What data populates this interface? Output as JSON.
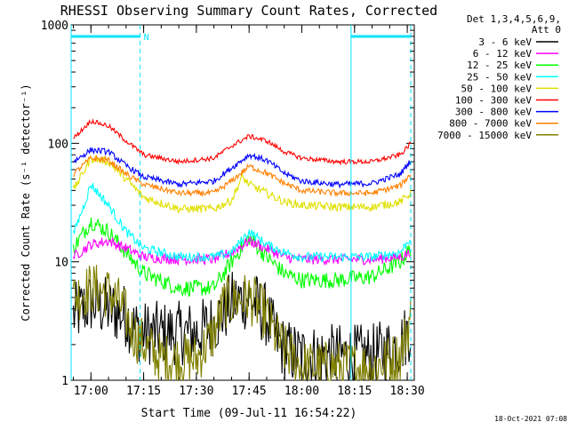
{
  "chart_data": {
    "type": "line",
    "title": "RHESSI Observing Summary Count Rates, Corrected",
    "xlabel": "Start Time (09-Jul-11 16:54:22)",
    "ylabel": "Corrected Count Rate (s⁻¹ detector⁻¹)",
    "yscale": "log",
    "ylim": [
      1,
      1000
    ],
    "xlim": [
      "16:54:22",
      "18:32:00"
    ],
    "x_ticks": [
      "17:00",
      "17:15",
      "17:30",
      "17:45",
      "18:00",
      "18:15",
      "18:30"
    ],
    "y_ticks": [
      "1",
      "10",
      "100",
      "1000"
    ],
    "legend_header": [
      "Det 1,3,4,5,6,9,",
      "Att 0"
    ],
    "legend_position": "right",
    "series": [
      {
        "name": "3 - 6 keV",
        "color": "#000000",
        "x": [
          "16:55",
          "17:00",
          "17:05",
          "17:10",
          "17:12",
          "17:15",
          "17:20",
          "17:30",
          "17:35",
          "17:40",
          "17:45",
          "17:50",
          "17:52",
          "17:55",
          "18:00",
          "18:10",
          "18:20",
          "18:28",
          "18:31"
        ],
        "y": [
          3.5,
          4.5,
          4.0,
          3.5,
          2.8,
          2.5,
          2.5,
          2.5,
          3.0,
          4.5,
          5.0,
          3.5,
          2.5,
          1.8,
          1.6,
          1.6,
          1.6,
          2.0,
          2.8
        ]
      },
      {
        "name": "6 - 12 keV",
        "color": "#ff00ff",
        "x": [
          "16:55",
          "17:00",
          "17:05",
          "17:10",
          "17:15",
          "17:25",
          "17:35",
          "17:40",
          "17:45",
          "17:50",
          "17:55",
          "18:00",
          "18:10",
          "18:20",
          "18:28",
          "18:31"
        ],
        "y": [
          11,
          14,
          15,
          13,
          11,
          10.5,
          10.5,
          12,
          15,
          13,
          11,
          10.5,
          10.5,
          10.5,
          11,
          12
        ]
      },
      {
        "name": "12 - 25 keV",
        "color": "#00ff00",
        "x": [
          "16:55",
          "17:00",
          "17:05",
          "17:10",
          "17:15",
          "17:25",
          "17:35",
          "17:40",
          "17:45",
          "17:50",
          "17:55",
          "18:00",
          "18:10",
          "18:20",
          "18:28",
          "18:31"
        ],
        "y": [
          13,
          22,
          18,
          12,
          8,
          6,
          6,
          10,
          16,
          11,
          8,
          7,
          7,
          7.5,
          10,
          13
        ]
      },
      {
        "name": "25 - 50 keV",
        "color": "#00ffff",
        "x": [
          "16:55",
          "16:58",
          "17:00",
          "17:05",
          "17:10",
          "17:15",
          "17:25",
          "17:35",
          "17:40",
          "17:45",
          "17:50",
          "17:55",
          "18:00",
          "18:10",
          "18:20",
          "18:28",
          "18:31"
        ],
        "y": [
          17,
          30,
          45,
          30,
          18,
          13,
          11,
          11,
          12,
          18,
          14,
          12,
          11,
          11,
          11,
          12,
          16
        ]
      },
      {
        "name": "50 - 100 keV",
        "color": "#e0e000",
        "x": [
          "16:55",
          "17:00",
          "17:05",
          "17:10",
          "17:15",
          "17:25",
          "17:35",
          "17:40",
          "17:43",
          "17:45",
          "17:50",
          "17:55",
          "18:00",
          "18:10",
          "18:20",
          "18:28",
          "18:31"
        ],
        "y": [
          40,
          75,
          70,
          50,
          35,
          28,
          28,
          33,
          52,
          45,
          38,
          32,
          30,
          29,
          29,
          32,
          38
        ]
      },
      {
        "name": "100 - 300 keV",
        "color": "#ff0000",
        "x": [
          "16:55",
          "17:00",
          "17:05",
          "17:10",
          "17:15",
          "17:25",
          "17:35",
          "17:40",
          "17:45",
          "17:50",
          "17:55",
          "18:00",
          "18:10",
          "18:20",
          "18:28",
          "18:31"
        ],
        "y": [
          110,
          155,
          140,
          105,
          80,
          70,
          75,
          95,
          115,
          105,
          85,
          75,
          70,
          70,
          80,
          100
        ]
      },
      {
        "name": "300 - 800 keV",
        "color": "#0000ff",
        "x": [
          "16:55",
          "17:00",
          "17:05",
          "17:10",
          "17:15",
          "17:25",
          "17:35",
          "17:40",
          "17:45",
          "17:50",
          "17:55",
          "18:00",
          "18:10",
          "18:20",
          "18:28",
          "18:31"
        ],
        "y": [
          70,
          88,
          85,
          65,
          52,
          45,
          48,
          62,
          80,
          72,
          56,
          48,
          45,
          46,
          55,
          72
        ]
      },
      {
        "name": "800 - 7000 keV",
        "color": "#ff8000",
        "x": [
          "16:55",
          "17:00",
          "17:05",
          "17:10",
          "17:15",
          "17:25",
          "17:35",
          "17:40",
          "17:45",
          "17:50",
          "17:55",
          "18:00",
          "18:10",
          "18:20",
          "18:28",
          "18:31"
        ],
        "y": [
          55,
          75,
          72,
          55,
          45,
          38,
          38,
          48,
          64,
          56,
          46,
          40,
          38,
          38,
          44,
          55
        ]
      },
      {
        "name": "7000 - 15000 keV",
        "color": "#808000",
        "x": [
          "16:55",
          "17:00",
          "17:05",
          "17:08",
          "17:10",
          "17:12",
          "17:15",
          "17:20",
          "17:30",
          "17:35",
          "17:38",
          "17:45",
          "17:50",
          "17:52",
          "17:55",
          "18:00",
          "18:10",
          "18:20",
          "18:28",
          "18:31"
        ],
        "y": [
          5,
          6,
          5.5,
          4.5,
          3.5,
          2.5,
          2,
          1.5,
          1.5,
          2.5,
          4.5,
          5,
          3.5,
          2.5,
          1.8,
          1.3,
          1.3,
          1.3,
          1.6,
          3.5
        ]
      }
    ],
    "annotations": {
      "vertical_lines": [
        "16:54:22",
        "17:14:00",
        "18:14:00",
        "18:31:00"
      ],
      "night_bars": [
        [
          "16:54:22",
          "17:14:00"
        ],
        [
          "18:14:00",
          "18:31:00"
        ]
      ],
      "markers": [
        {
          "at": "17:14:00",
          "label": "N"
        }
      ]
    },
    "grid": false
  },
  "footer": {
    "timestamp": "18-Oct-2021 07:08"
  }
}
